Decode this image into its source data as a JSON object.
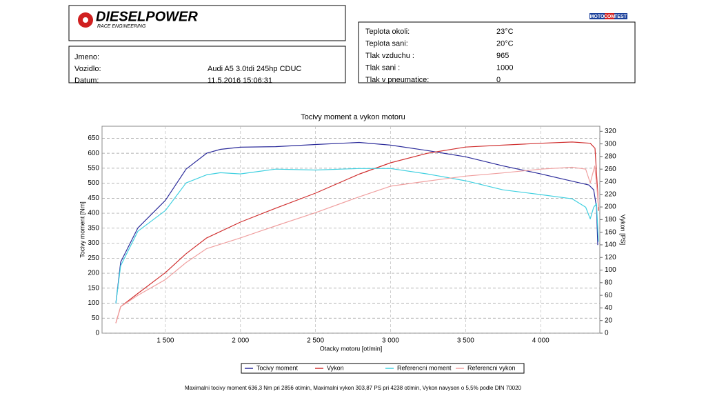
{
  "logo": {
    "brand": "DIESELPOWER",
    "sub": "RACE ENGINEERING"
  },
  "badge": [
    "MOTO",
    "COM",
    "TEST"
  ],
  "vehicle": [
    {
      "label": "Jmeno:"
    },
    {
      "label": "Vozidlo:",
      "value": "Audi A5 3.0tdi 245hp CDUC"
    },
    {
      "label": "Datum:",
      "value": "11.5.2016 15:06:31"
    }
  ],
  "conditions": [
    {
      "label": "Teplota okoli:",
      "value": "23°C"
    },
    {
      "label": "Teplota sani:",
      "value": "20°C"
    },
    {
      "label": "Tlak vzduchu :",
      "value": "965"
    },
    {
      "label": "Tlak sani :",
      "value": "1000"
    },
    {
      "label": "Tlak v pneumatice:",
      "value": "0"
    }
  ],
  "footer": "Maximalni tocivy moment 636,3 Nm pri 2856 ot/min,  Maximalni vykon 303,87 PS pri 4238 ot/min,  Vykon navysen o 5,5% podle DIN 70020",
  "chart_data": {
    "type": "line",
    "title": "Tocivy moment a vykon motoru",
    "x_label": "Otacky motoru [ot/min]",
    "y_label": "Tocivy moment [Nm]",
    "y2_label": "Vykon [PS]",
    "xlim": [
      1078,
      4394
    ],
    "ylim": [
      0,
      690
    ],
    "y2lim": [
      0,
      328
    ],
    "grid": true,
    "legend": "bottom",
    "xticks": [
      {
        "value": 1500,
        "label": "1 500"
      },
      {
        "value": 2000,
        "label": "2 000"
      },
      {
        "value": 2500,
        "label": "2 500"
      },
      {
        "value": 3000,
        "label": "3 000"
      },
      {
        "value": 3500,
        "label": "3 500"
      },
      {
        "value": 4000,
        "label": "4 000"
      }
    ],
    "yticks": [
      0,
      50,
      100,
      150,
      200,
      250,
      300,
      350,
      400,
      450,
      500,
      550,
      600,
      650
    ],
    "y2ticks": [
      0,
      20,
      40,
      60,
      80,
      100,
      120,
      140,
      160,
      180,
      200,
      220,
      240,
      260,
      280,
      300,
      320
    ],
    "series": [
      {
        "name": "Tocivy moment",
        "color": "#2b2b9a",
        "x": [
          1170,
          1202,
          1317,
          1500,
          1638,
          1775,
          1867,
          2000,
          2234,
          2500,
          2790,
          3000,
          3243,
          3500,
          3748,
          4000,
          4165,
          4321,
          4353,
          4372,
          4380
        ],
        "values": [
          99,
          237,
          351,
          443,
          547,
          600,
          613,
          620,
          622,
          629,
          636,
          627,
          609,
          588,
          558,
          531,
          512,
          494,
          478,
          420,
          294
        ]
      },
      {
        "name": "Vykon",
        "color": "#d03030",
        "axis": "y2",
        "x": [
          1170,
          1202,
          1317,
          1500,
          1638,
          1775,
          2000,
          2234,
          2500,
          2790,
          3000,
          3243,
          3500,
          3748,
          4000,
          4210,
          4330,
          4362,
          4380,
          4385
        ],
        "values": [
          16,
          42,
          63,
          96,
          126,
          151,
          176,
          198,
          222,
          252,
          270,
          285,
          295,
          298,
          301,
          303,
          301,
          293,
          222,
          194
        ]
      },
      {
        "name": "Referencni moment",
        "color": "#40d0e0",
        "x": [
          1170,
          1202,
          1317,
          1500,
          1638,
          1775,
          1867,
          2000,
          2234,
          2500,
          2790,
          3000,
          3243,
          3500,
          3748,
          4000,
          4210,
          4300,
          4330,
          4353,
          4372,
          4385
        ],
        "values": [
          99,
          225,
          340,
          409,
          501,
          528,
          535,
          531,
          547,
          544,
          549,
          549,
          531,
          508,
          478,
          462,
          448,
          420,
          381,
          420,
          432,
          305
        ]
      },
      {
        "name": "Referencni vykon",
        "color": "#f0a0a0",
        "axis": "y2",
        "x": [
          1170,
          1202,
          1317,
          1500,
          1638,
          1775,
          2000,
          2234,
          2500,
          2790,
          3000,
          3243,
          3500,
          3748,
          4000,
          4210,
          4300,
          4330,
          4360,
          4376,
          4385
        ],
        "values": [
          16,
          42,
          60,
          85,
          112,
          134,
          151,
          170,
          191,
          216,
          233,
          241,
          249,
          254,
          260,
          263,
          260,
          238,
          265,
          227,
          200
        ]
      }
    ]
  }
}
